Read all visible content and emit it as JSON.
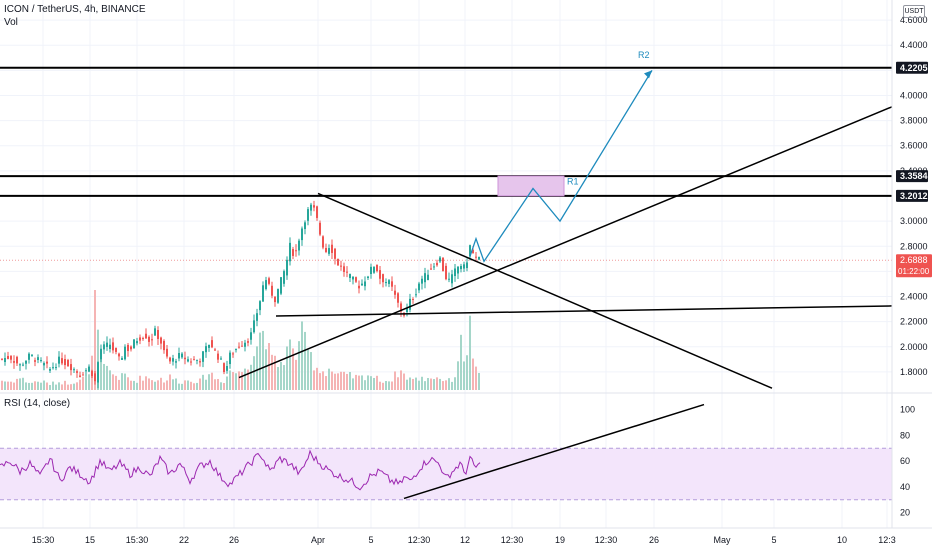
{
  "header": {
    "title": "ICON / TetherUS, 4h, BINANCE",
    "vol_label": "Vol",
    "rsi_label": "RSI (14, close)",
    "currency": "USDT"
  },
  "colors": {
    "up": "#26a69a",
    "down": "#ef5350",
    "vol_up": "#a5d6c9",
    "vol_down": "#f5b4b4",
    "drawing": "#000000",
    "projection": "#1e8bbd",
    "rsi_line": "#9c27b0",
    "rsi_band": "#f3e5fb",
    "zone": "#e6c5ec",
    "price_badge": "#ef5350"
  },
  "price_axis": {
    "ticks": [
      "4.6000",
      "4.4000",
      "4.2000",
      "4.0000",
      "3.8000",
      "3.6000",
      "3.4000",
      "3.2000",
      "3.0000",
      "2.8000",
      "2.6000",
      "2.4000",
      "2.2000",
      "2.0000",
      "1.8000"
    ],
    "ylim": [
      1.64,
      4.76
    ]
  },
  "rsi_axis": {
    "ticks": [
      "100",
      "80",
      "60",
      "40",
      "20"
    ],
    "ylim": [
      8,
      113
    ],
    "band": [
      30,
      70
    ]
  },
  "time_axis": {
    "ticks": [
      "15:30",
      "15",
      "15:30",
      "22",
      "26",
      "Apr",
      "5",
      "12:30",
      "12",
      "12:30",
      "19",
      "12:30",
      "26",
      "May",
      "5",
      "10",
      "12:3"
    ]
  },
  "levels": [
    {
      "label": "4.2205",
      "value": 4.2205
    },
    {
      "label": "3.3584",
      "value": 3.3584
    },
    {
      "label": "3.2012",
      "value": 3.2012
    }
  ],
  "current_price": {
    "label": "2.6888",
    "value": 2.6888,
    "countdown": "01:22:00"
  },
  "annotations": {
    "r1": "R1",
    "r2": "R2"
  },
  "chart_data": [
    {
      "type": "candlestick",
      "title": "ICON / TetherUS, 4h, BINANCE",
      "series": [
        {
          "name": "price_path",
          "x": [
            0,
            10,
            20,
            30,
            40,
            50,
            60,
            70,
            80,
            90,
            95,
            100,
            110,
            120,
            125,
            130,
            135,
            145,
            150,
            155,
            160,
            165,
            170,
            180,
            190,
            200,
            210,
            215,
            220,
            225,
            230,
            240,
            250,
            255,
            260,
            265,
            270,
            275,
            280,
            285,
            290,
            295,
            300,
            305,
            310,
            315,
            320,
            325,
            330,
            335,
            340,
            350,
            360,
            370,
            375,
            380,
            390,
            400,
            405,
            410,
            415,
            420,
            425,
            430,
            440,
            445,
            450,
            455,
            460,
            465,
            470,
            475,
            480
          ],
          "values": [
            1.9,
            1.92,
            1.85,
            1.93,
            1.88,
            1.82,
            1.9,
            1.85,
            1.78,
            1.84,
            1.72,
            1.98,
            2.02,
            1.88,
            2.0,
            1.97,
            2.05,
            2.1,
            2.04,
            2.12,
            2.06,
            1.93,
            1.88,
            1.93,
            1.89,
            1.9,
            2.04,
            1.96,
            1.9,
            1.8,
            1.93,
            2.02,
            2.07,
            2.21,
            2.37,
            2.56,
            2.45,
            2.38,
            2.5,
            2.62,
            2.8,
            2.72,
            2.9,
            3.02,
            3.12,
            3.08,
            2.9,
            2.75,
            2.82,
            2.7,
            2.64,
            2.55,
            2.48,
            2.6,
            2.66,
            2.55,
            2.5,
            2.3,
            2.25,
            2.36,
            2.42,
            2.53,
            2.56,
            2.62,
            2.7,
            2.56,
            2.52,
            2.6,
            2.66,
            2.62,
            2.8,
            2.7,
            2.69
          ]
        },
        {
          "name": "volume",
          "x": [
            0,
            10,
            20,
            30,
            40,
            50,
            60,
            70,
            80,
            90,
            95,
            100,
            110,
            120,
            125,
            130,
            135,
            145,
            150,
            155,
            160,
            165,
            170,
            180,
            190,
            200,
            210,
            215,
            220,
            225,
            230,
            240,
            250,
            255,
            260,
            265,
            270,
            275,
            280,
            285,
            290,
            295,
            300,
            305,
            310,
            315,
            320,
            325,
            330,
            335,
            340,
            350,
            360,
            370,
            375,
            380,
            390,
            400,
            405,
            410,
            415,
            420,
            425,
            430,
            440,
            445,
            450,
            455,
            460,
            465,
            470,
            475,
            480
          ],
          "values": [
            0.1,
            0.08,
            0.12,
            0.07,
            0.09,
            0.06,
            0.08,
            0.07,
            0.11,
            0.13,
            1.0,
            0.25,
            0.18,
            0.12,
            0.15,
            0.1,
            0.09,
            0.14,
            0.11,
            0.1,
            0.12,
            0.09,
            0.13,
            0.08,
            0.1,
            0.09,
            0.18,
            0.12,
            0.1,
            0.09,
            0.2,
            0.16,
            0.32,
            0.4,
            0.55,
            0.65,
            0.3,
            0.28,
            0.25,
            0.35,
            0.45,
            0.3,
            0.6,
            0.45,
            0.35,
            0.25,
            0.2,
            0.18,
            0.22,
            0.16,
            0.15,
            0.14,
            0.12,
            0.16,
            0.12,
            0.1,
            0.09,
            0.2,
            0.14,
            0.12,
            0.1,
            0.12,
            0.11,
            0.13,
            0.12,
            0.1,
            0.09,
            0.14,
            0.48,
            0.3,
            0.62,
            0.2,
            0.12
          ]
        }
      ],
      "ylim": [
        1.64,
        4.76
      ],
      "grid": true
    },
    {
      "type": "line",
      "title": "RSI (14, close)",
      "series": [
        {
          "name": "RSI",
          "x": [
            0,
            10,
            20,
            30,
            40,
            50,
            60,
            70,
            80,
            90,
            100,
            110,
            120,
            130,
            140,
            150,
            160,
            170,
            180,
            190,
            200,
            210,
            220,
            230,
            240,
            250,
            260,
            270,
            280,
            290,
            300,
            310,
            320,
            330,
            340,
            350,
            360,
            370,
            380,
            390,
            400,
            405,
            410,
            420,
            430,
            440,
            445,
            450,
            460,
            465,
            470,
            475,
            480
          ],
          "values": [
            55,
            60,
            52,
            58,
            48,
            62,
            45,
            55,
            50,
            44,
            60,
            52,
            58,
            50,
            55,
            48,
            62,
            50,
            58,
            45,
            56,
            60,
            48,
            42,
            50,
            58,
            66,
            52,
            62,
            58,
            50,
            66,
            58,
            52,
            48,
            45,
            40,
            48,
            52,
            45,
            42,
            48,
            44,
            55,
            62,
            58,
            46,
            50,
            58,
            50,
            62,
            55,
            57
          ]
        }
      ],
      "ylim": [
        8,
        113
      ],
      "grid": true
    }
  ]
}
